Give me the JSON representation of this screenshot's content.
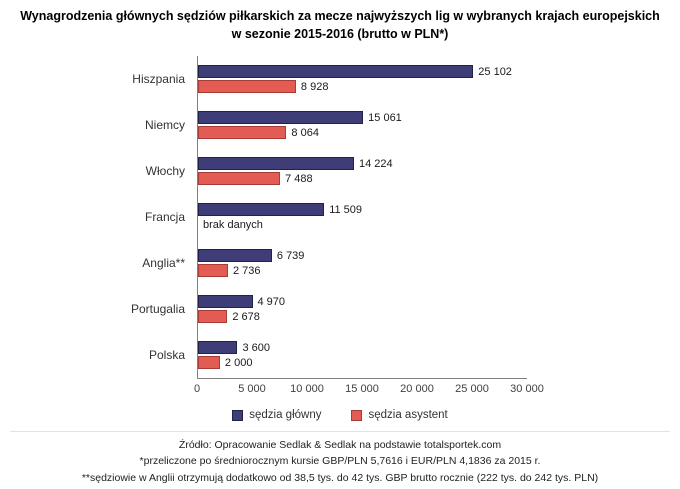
{
  "title": "Wynagrodzenia głównych sędziów piłkarskich za mecze najwyższych lig w wybranych krajach europejskich w sezonie 2015-2016 (brutto w PLN*)",
  "chart_data": {
    "type": "bar",
    "orientation": "horizontal",
    "title": "Wynagrodzenia głównych sędziów piłkarskich za mecze najwyższych lig w wybranych krajach europejskich w sezonie 2015-2016 (brutto w PLN*)",
    "xlabel": "",
    "ylabel": "",
    "categories": [
      "Hiszpania",
      "Niemcy",
      "Włochy",
      "Francja",
      "Anglia**",
      "Portugalia",
      "Polska"
    ],
    "series": [
      {
        "id": "sedzia-glowny",
        "name": "sędzia główny",
        "color": "#3f3d78",
        "values": [
          25102,
          15061,
          14224,
          11509,
          6739,
          4970,
          3600
        ],
        "labels": [
          "25 102",
          "15 061",
          "14 224",
          "11 509",
          "6 739",
          "4 970",
          "3 600"
        ]
      },
      {
        "id": "sedzia-asystent",
        "name": "sędzia asystent",
        "color": "#e25c53",
        "values": [
          8928,
          8064,
          7488,
          null,
          2736,
          2678,
          2000
        ],
        "labels": [
          "8 928",
          "8 064",
          "7 488",
          "brak danych",
          "2 736",
          "2 678",
          "2 000"
        ]
      }
    ],
    "xlim": [
      0,
      30000
    ],
    "xticks": [
      "0",
      "5 000",
      "10 000",
      "15 000",
      "20 000",
      "25 000",
      "30 000"
    ],
    "grid": false,
    "legend_position": "bottom"
  },
  "footer": {
    "line1": "Źródło: Opracowanie Sedlak & Sedlak na podstawie totalsportek.com",
    "line2": "*przeliczone po średniorocznym kursie GBP/PLN 5,7616 i EUR/PLN 4,1836 za 2015 r.",
    "line3": "**sędziowie w Anglii otrzymują dodatkowo od 38,5 tys. do 42 tys. GBP brutto rocznie (222 tys. do 242 tys. PLN)"
  }
}
